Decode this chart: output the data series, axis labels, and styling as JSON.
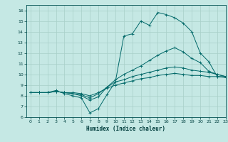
{
  "background_color": "#c5e8e4",
  "grid_color": "#a8cfc8",
  "line_color": "#006868",
  "xlabel": "Humidex (Indice chaleur)",
  "xlim": [
    -0.5,
    23
  ],
  "ylim": [
    6,
    16.5
  ],
  "xticks": [
    0,
    1,
    2,
    3,
    4,
    5,
    6,
    7,
    8,
    9,
    10,
    11,
    12,
    13,
    14,
    15,
    16,
    17,
    18,
    19,
    20,
    21,
    22,
    23
  ],
  "yticks": [
    6,
    7,
    8,
    9,
    10,
    11,
    12,
    13,
    14,
    15,
    16
  ],
  "lines": [
    {
      "x": [
        0,
        1,
        2,
        3,
        4,
        5,
        6,
        7,
        8,
        9,
        10,
        11,
        12,
        13,
        14,
        15,
        16,
        17,
        18,
        19,
        20,
        21,
        22,
        23
      ],
      "y": [
        8.3,
        8.3,
        8.3,
        8.5,
        8.2,
        8.0,
        7.8,
        6.4,
        6.8,
        8.1,
        9.3,
        13.6,
        13.8,
        15.0,
        14.6,
        15.8,
        15.6,
        15.3,
        14.8,
        14.0,
        12.0,
        11.2,
        9.8,
        9.8
      ]
    },
    {
      "x": [
        0,
        1,
        2,
        3,
        4,
        5,
        6,
        7,
        8,
        9,
        10,
        11,
        12,
        13,
        14,
        15,
        16,
        17,
        18,
        19,
        20,
        21,
        22,
        23
      ],
      "y": [
        8.3,
        8.3,
        8.3,
        8.4,
        8.3,
        8.2,
        8.0,
        7.6,
        7.9,
        8.8,
        9.5,
        10.0,
        10.4,
        10.8,
        11.3,
        11.8,
        12.2,
        12.5,
        12.1,
        11.5,
        11.1,
        10.3,
        10.0,
        9.8
      ]
    },
    {
      "x": [
        0,
        1,
        2,
        3,
        4,
        5,
        6,
        7,
        8,
        9,
        10,
        11,
        12,
        13,
        14,
        15,
        16,
        17,
        18,
        19,
        20,
        21,
        22,
        23
      ],
      "y": [
        8.3,
        8.3,
        8.3,
        8.4,
        8.3,
        8.2,
        8.1,
        7.8,
        8.2,
        8.8,
        9.3,
        9.5,
        9.8,
        10.0,
        10.2,
        10.4,
        10.6,
        10.7,
        10.6,
        10.4,
        10.3,
        10.2,
        10.0,
        9.8
      ]
    },
    {
      "x": [
        0,
        1,
        2,
        3,
        4,
        5,
        6,
        7,
        8,
        9,
        10,
        11,
        12,
        13,
        14,
        15,
        16,
        17,
        18,
        19,
        20,
        21,
        22,
        23
      ],
      "y": [
        8.3,
        8.3,
        8.3,
        8.4,
        8.3,
        8.3,
        8.2,
        8.0,
        8.3,
        8.7,
        9.0,
        9.2,
        9.4,
        9.6,
        9.7,
        9.9,
        10.0,
        10.1,
        10.0,
        9.9,
        9.9,
        9.8,
        9.8,
        9.7
      ]
    }
  ]
}
